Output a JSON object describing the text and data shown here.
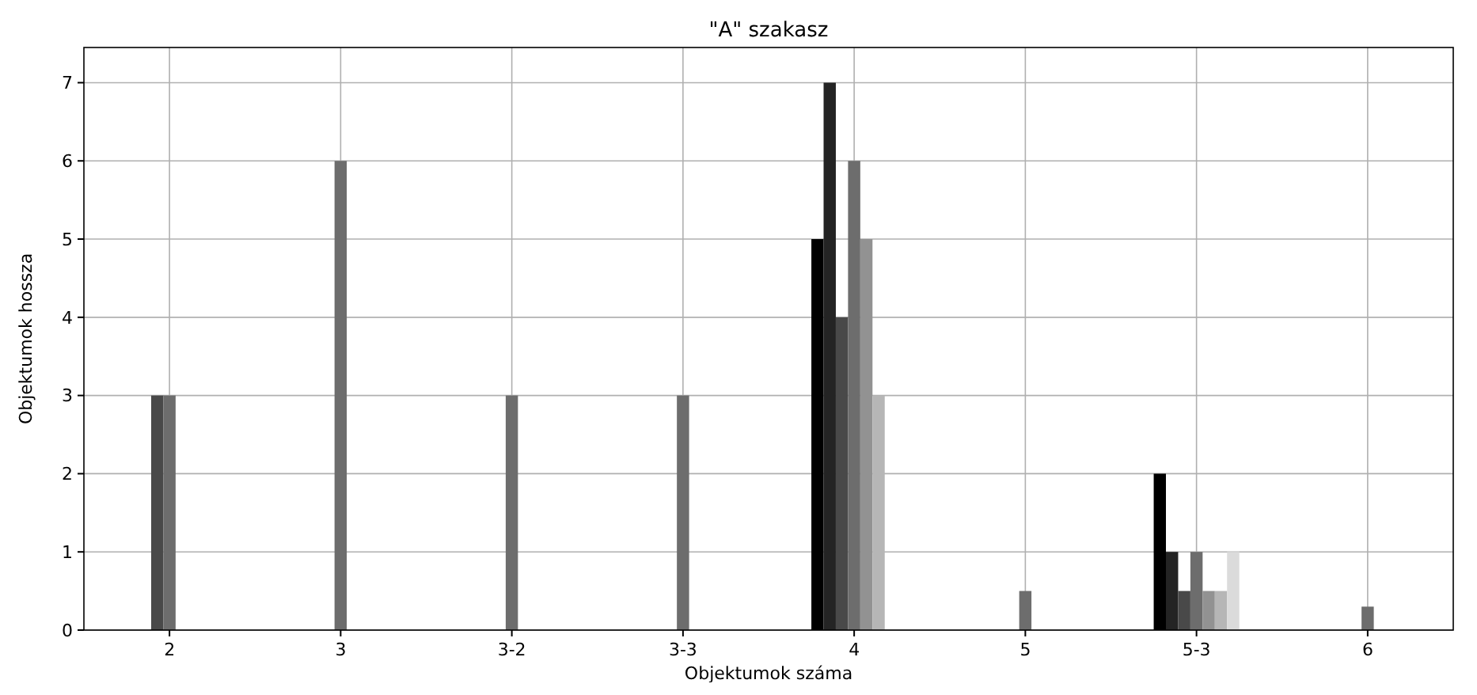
{
  "chart_data": {
    "type": "bar",
    "title": "\"A\" szakasz",
    "xlabel": "Objektumok száma",
    "ylabel": "Objektumok hossza",
    "categories": [
      "2",
      "3",
      "3-2",
      "3-3",
      "4",
      "5",
      "5-3",
      "6"
    ],
    "series": [
      {
        "color": "#000000",
        "values": [
          null,
          null,
          null,
          null,
          5,
          null,
          2,
          null
        ]
      },
      {
        "color": "#242424",
        "values": [
          null,
          null,
          null,
          null,
          7,
          null,
          1,
          null
        ]
      },
      {
        "color": "#494949",
        "values": [
          3,
          null,
          null,
          null,
          4,
          null,
          0.5,
          null
        ]
      },
      {
        "color": "#6d6d6d",
        "values": [
          3,
          6,
          3,
          3,
          6,
          0.5,
          1,
          0.3
        ]
      },
      {
        "color": "#929292",
        "values": [
          null,
          null,
          null,
          null,
          5,
          null,
          0.5,
          null
        ]
      },
      {
        "color": "#b6b6b6",
        "values": [
          null,
          null,
          null,
          null,
          3,
          null,
          0.5,
          null
        ]
      },
      {
        "color": "#dbdbdb",
        "values": [
          null,
          null,
          null,
          null,
          null,
          null,
          1,
          null
        ]
      }
    ],
    "ylim": [
      0,
      7.45
    ],
    "yticks": [
      0,
      1,
      2,
      3,
      4,
      5,
      6,
      7
    ],
    "grid": true
  }
}
